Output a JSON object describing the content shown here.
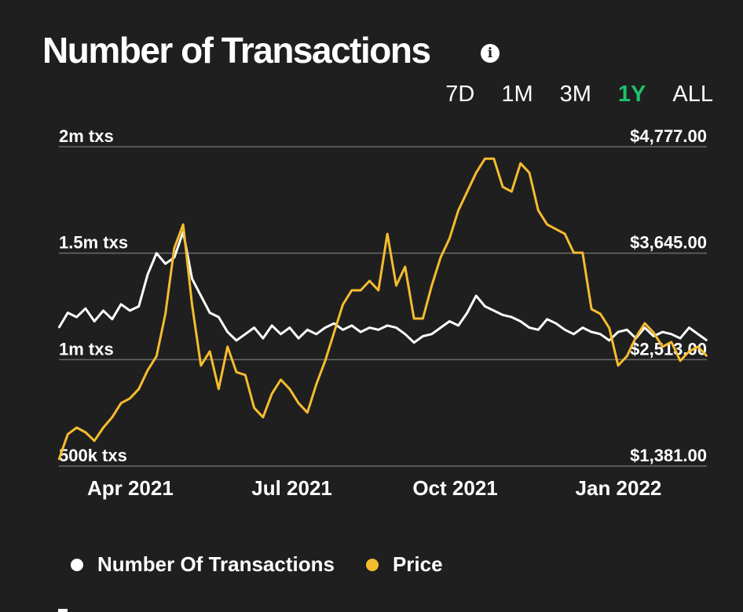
{
  "header": {
    "title": "Number of Transactions",
    "info_icon": "i"
  },
  "ranges": [
    {
      "label": "7D",
      "active": false
    },
    {
      "label": "1M",
      "active": false
    },
    {
      "label": "3M",
      "active": false
    },
    {
      "label": "1Y",
      "active": true
    },
    {
      "label": "ALL",
      "active": false
    }
  ],
  "legend": {
    "transactions": "Number Of Transactions",
    "price": "Price"
  },
  "colors": {
    "background": "#1f1f1f",
    "transactions": "#ffffff",
    "price": "#f5bc2f",
    "active": "#1cc26b",
    "grid": "#6b6b6b"
  },
  "chart_data": {
    "type": "line",
    "title": "Number of Transactions",
    "x_axis": {
      "labels": [
        "Apr 2021",
        "Jul 2021",
        "Oct 2021",
        "Jan 2022"
      ],
      "label_day_index": [
        15,
        106,
        198,
        290
      ],
      "range_days": [
        0,
        365
      ]
    },
    "y_left": {
      "range": [
        500000,
        2000000
      ],
      "ticks": [
        500000,
        1000000,
        1500000,
        2000000
      ],
      "tick_labels": [
        "500k txs",
        "1m txs",
        "1.5m txs",
        "2m txs"
      ]
    },
    "y_right": {
      "range": [
        1381,
        4777
      ],
      "ticks": [
        1381,
        2513,
        3645,
        4777
      ],
      "tick_labels": [
        "$1,381.00",
        "$2,513.00",
        "$3,645.00",
        "$4,777.00"
      ]
    },
    "series": [
      {
        "name": "Number Of Transactions",
        "axis": "left",
        "points": [
          [
            0,
            1150000
          ],
          [
            5,
            1220000
          ],
          [
            10,
            1200000
          ],
          [
            15,
            1240000
          ],
          [
            20,
            1180000
          ],
          [
            25,
            1230000
          ],
          [
            30,
            1190000
          ],
          [
            35,
            1260000
          ],
          [
            40,
            1230000
          ],
          [
            45,
            1250000
          ],
          [
            50,
            1400000
          ],
          [
            55,
            1500000
          ],
          [
            60,
            1450000
          ],
          [
            65,
            1480000
          ],
          [
            70,
            1600000
          ],
          [
            75,
            1380000
          ],
          [
            80,
            1300000
          ],
          [
            85,
            1220000
          ],
          [
            90,
            1200000
          ],
          [
            95,
            1130000
          ],
          [
            100,
            1090000
          ],
          [
            105,
            1120000
          ],
          [
            110,
            1150000
          ],
          [
            115,
            1100000
          ],
          [
            120,
            1160000
          ],
          [
            125,
            1120000
          ],
          [
            130,
            1150000
          ],
          [
            135,
            1100000
          ],
          [
            140,
            1140000
          ],
          [
            145,
            1120000
          ],
          [
            150,
            1150000
          ],
          [
            155,
            1170000
          ],
          [
            160,
            1140000
          ],
          [
            165,
            1160000
          ],
          [
            170,
            1130000
          ],
          [
            175,
            1150000
          ],
          [
            180,
            1140000
          ],
          [
            185,
            1160000
          ],
          [
            190,
            1150000
          ],
          [
            195,
            1120000
          ],
          [
            200,
            1080000
          ],
          [
            205,
            1110000
          ],
          [
            210,
            1120000
          ],
          [
            215,
            1150000
          ],
          [
            220,
            1180000
          ],
          [
            225,
            1160000
          ],
          [
            230,
            1220000
          ],
          [
            235,
            1300000
          ],
          [
            240,
            1250000
          ],
          [
            245,
            1230000
          ],
          [
            250,
            1210000
          ],
          [
            255,
            1200000
          ],
          [
            260,
            1180000
          ],
          [
            265,
            1150000
          ],
          [
            270,
            1140000
          ],
          [
            275,
            1190000
          ],
          [
            280,
            1170000
          ],
          [
            285,
            1140000
          ],
          [
            290,
            1120000
          ],
          [
            295,
            1150000
          ],
          [
            300,
            1130000
          ],
          [
            305,
            1120000
          ],
          [
            310,
            1090000
          ],
          [
            315,
            1130000
          ],
          [
            320,
            1140000
          ],
          [
            325,
            1100000
          ],
          [
            330,
            1150000
          ],
          [
            335,
            1110000
          ],
          [
            340,
            1130000
          ],
          [
            345,
            1120000
          ],
          [
            350,
            1100000
          ],
          [
            355,
            1150000
          ],
          [
            360,
            1120000
          ],
          [
            365,
            1090000
          ]
        ]
      },
      {
        "name": "Price",
        "axis": "right",
        "points": [
          [
            0,
            1450
          ],
          [
            5,
            1720
          ],
          [
            10,
            1790
          ],
          [
            15,
            1740
          ],
          [
            20,
            1650
          ],
          [
            25,
            1790
          ],
          [
            30,
            1900
          ],
          [
            35,
            2050
          ],
          [
            40,
            2100
          ],
          [
            45,
            2200
          ],
          [
            50,
            2400
          ],
          [
            55,
            2550
          ],
          [
            60,
            3000
          ],
          [
            65,
            3700
          ],
          [
            70,
            3950
          ],
          [
            75,
            3100
          ],
          [
            80,
            2450
          ],
          [
            85,
            2600
          ],
          [
            90,
            2200
          ],
          [
            95,
            2650
          ],
          [
            100,
            2380
          ],
          [
            105,
            2350
          ],
          [
            110,
            2000
          ],
          [
            115,
            1900
          ],
          [
            120,
            2150
          ],
          [
            125,
            2300
          ],
          [
            130,
            2200
          ],
          [
            135,
            2050
          ],
          [
            140,
            1950
          ],
          [
            145,
            2250
          ],
          [
            150,
            2500
          ],
          [
            155,
            2800
          ],
          [
            160,
            3100
          ],
          [
            165,
            3250
          ],
          [
            170,
            3250
          ],
          [
            175,
            3350
          ],
          [
            180,
            3250
          ],
          [
            185,
            3850
          ],
          [
            190,
            3300
          ],
          [
            195,
            3500
          ],
          [
            200,
            2950
          ],
          [
            205,
            2950
          ],
          [
            210,
            3300
          ],
          [
            215,
            3600
          ],
          [
            220,
            3800
          ],
          [
            225,
            4100
          ],
          [
            230,
            4300
          ],
          [
            235,
            4500
          ],
          [
            240,
            4650
          ],
          [
            245,
            4650
          ],
          [
            250,
            4350
          ],
          [
            255,
            4300
          ],
          [
            260,
            4600
          ],
          [
            265,
            4500
          ],
          [
            270,
            4100
          ],
          [
            275,
            3950
          ],
          [
            280,
            3900
          ],
          [
            285,
            3850
          ],
          [
            290,
            3650
          ],
          [
            295,
            3650
          ],
          [
            300,
            3050
          ],
          [
            305,
            3000
          ],
          [
            310,
            2850
          ],
          [
            315,
            2450
          ],
          [
            320,
            2550
          ],
          [
            325,
            2750
          ],
          [
            330,
            2900
          ],
          [
            335,
            2800
          ],
          [
            340,
            2650
          ],
          [
            345,
            2700
          ],
          [
            350,
            2500
          ],
          [
            355,
            2600
          ],
          [
            360,
            2650
          ],
          [
            365,
            2550
          ]
        ]
      }
    ]
  }
}
